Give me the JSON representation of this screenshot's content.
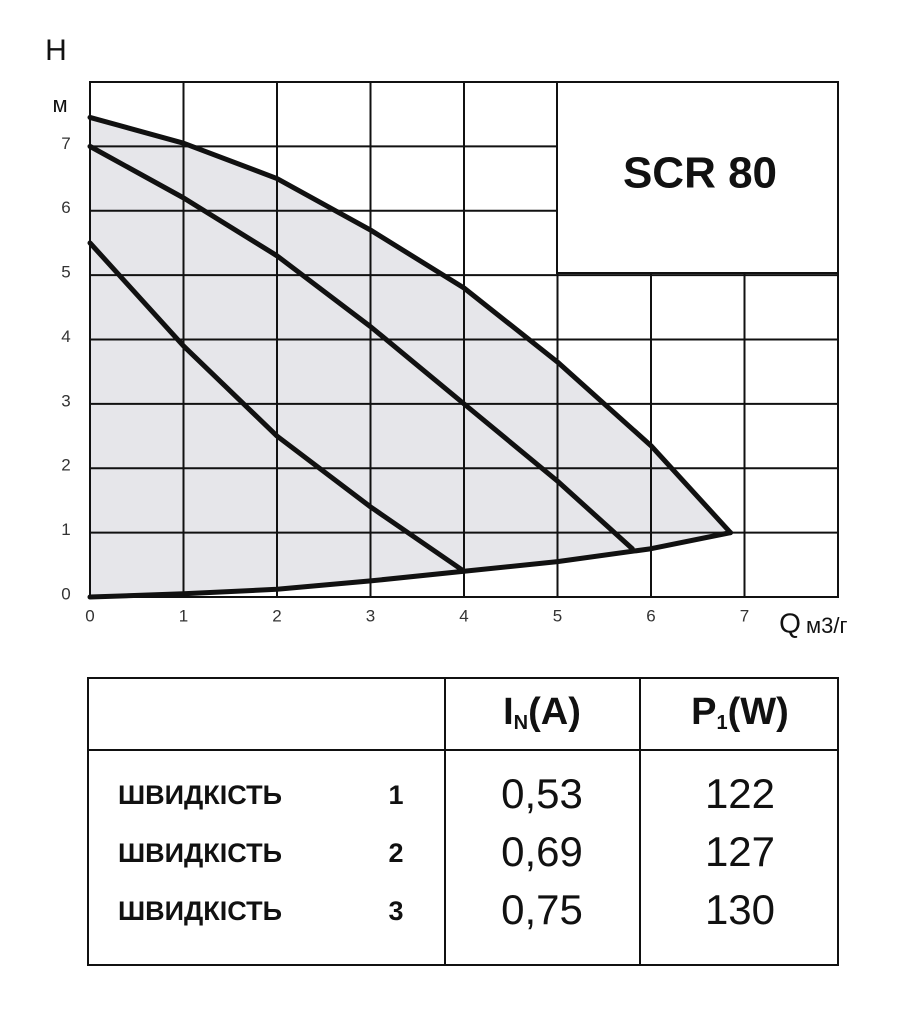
{
  "chart_data": {
    "type": "line",
    "title": "SCR 80",
    "y_label": "H",
    "y_unit": "м",
    "x_label": "Q",
    "x_unit": "м3/г",
    "xlim": [
      0,
      8
    ],
    "ylim": [
      0,
      8
    ],
    "xticks": [
      0,
      1,
      2,
      3,
      4,
      5,
      6,
      7
    ],
    "yticks": [
      0,
      1,
      2,
      3,
      4,
      5,
      6,
      7
    ],
    "grid": true,
    "area_color": "#e6e6ea",
    "series": [
      {
        "color": "#111111",
        "x": [
          0,
          1,
          2,
          3,
          4,
          5,
          5.8
        ],
        "values": [
          7.0,
          6.2,
          5.3,
          4.2,
          3.0,
          1.8,
          0.75
        ]
      },
      {
        "color": "#111111",
        "x": [
          0,
          1,
          2,
          3,
          4
        ],
        "values": [
          5.5,
          3.9,
          2.5,
          1.4,
          0.4
        ]
      },
      {
        "color": "#111111",
        "x": [
          0,
          1,
          2,
          3,
          4,
          5,
          6,
          6.85
        ],
        "values": [
          7.45,
          7.05,
          6.5,
          5.7,
          4.8,
          3.65,
          2.35,
          1.0
        ]
      },
      {
        "color": "#111111",
        "x": [
          0,
          1,
          2,
          3,
          4,
          5,
          6,
          6.85
        ],
        "values": [
          0,
          0.05,
          0.12,
          0.25,
          0.4,
          0.55,
          0.75,
          1.0
        ]
      }
    ]
  },
  "table": {
    "header": [
      {
        "main": "I",
        "sub": "N",
        "unit": "(A)"
      },
      {
        "main": "P",
        "sub": "1",
        "unit": "(W)"
      }
    ],
    "rows": [
      [
        "ШВИДКІСТЬ",
        "1",
        "0,53",
        "122"
      ],
      [
        "ШВИДКІСТЬ",
        "2",
        "0,69",
        "127"
      ],
      [
        "ШВИДКІСТЬ",
        "3",
        "0,75",
        "130"
      ]
    ]
  }
}
